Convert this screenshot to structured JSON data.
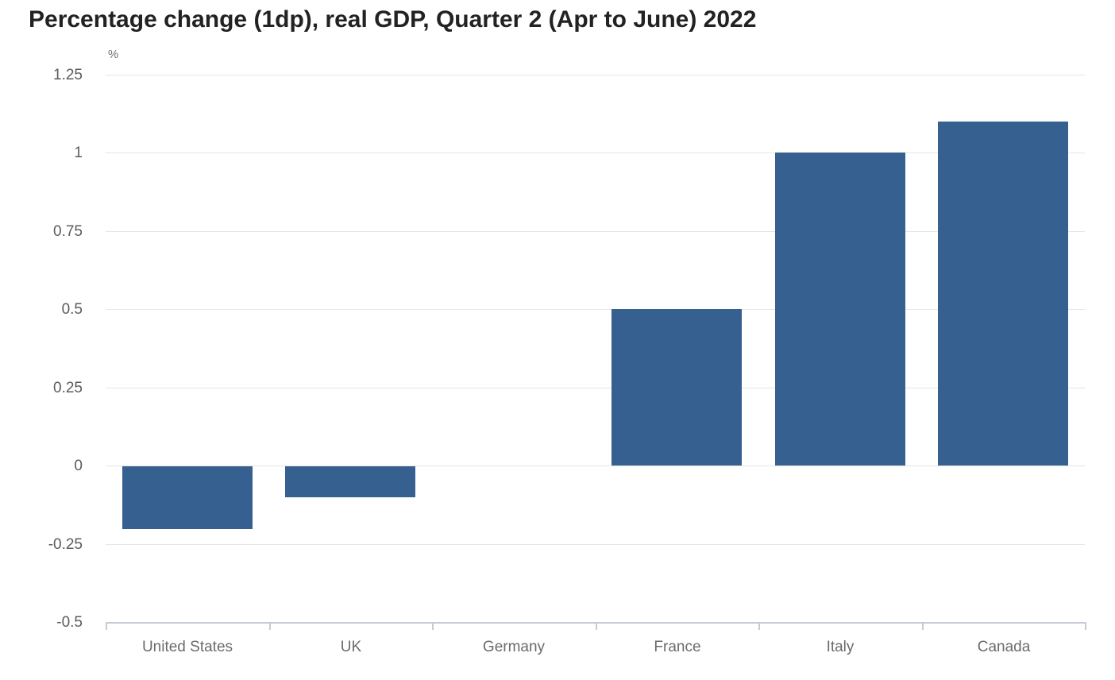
{
  "header": {
    "title": "Percentage change (1dp), real GDP, Quarter 2 (Apr to June) 2022"
  },
  "chart_data": {
    "type": "bar",
    "title": "Percentage change (1dp), real GDP, Quarter 2 (Apr to June) 2022",
    "unit_label": "%",
    "categories": [
      "United States",
      "UK",
      "Germany",
      "France",
      "Italy",
      "Canada"
    ],
    "values": [
      -0.2,
      -0.1,
      0,
      0.5,
      1,
      1.1
    ],
    "xlabel": "",
    "ylabel": "%",
    "ylim": [
      -0.5,
      1.25
    ],
    "yticks": [
      1.25,
      1,
      0.75,
      0.5,
      0.25,
      0,
      -0.25,
      -0.5
    ],
    "ytick_labels": [
      "1.25",
      "1",
      "0.75",
      "0.5",
      "0.25",
      "0",
      "-0.25",
      "-0.5"
    ],
    "grid": true,
    "legend": false,
    "bar_color": "#35608f",
    "gridline_color": "#e5e5e5",
    "axis_line_color": "#c5ccd6"
  }
}
